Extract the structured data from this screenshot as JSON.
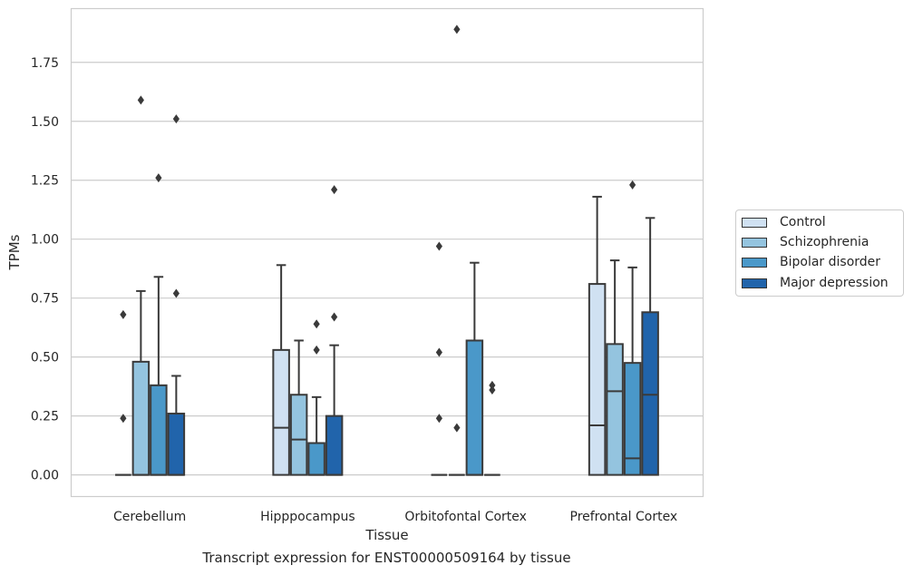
{
  "chart_data": {
    "type": "box",
    "title": "",
    "caption": "Transcript expression for ENST00000509164 by tissue",
    "xlabel": "Tissue",
    "ylabel": "TPMs",
    "ylim": [
      -0.09,
      1.98
    ],
    "yticks": [
      "0.00",
      "0.25",
      "0.50",
      "0.75",
      "1.00",
      "1.25",
      "1.50",
      "1.75"
    ],
    "ytick_values": [
      0,
      0.25,
      0.5,
      0.75,
      1.0,
      1.25,
      1.5,
      1.75
    ],
    "grid": true,
    "legend_position": "right",
    "categories": [
      "Cerebellum",
      "Hipppocampus",
      "Orbitofontal Cortex",
      "Prefrontal Cortex"
    ],
    "series": [
      {
        "name": "Control",
        "color": "#d0e1f2",
        "boxes": [
          {
            "q1": 0,
            "median": 0,
            "q3": 0,
            "whisker_low": 0,
            "whisker_high": 0,
            "outliers": [
              0.24,
              0.68
            ]
          },
          {
            "q1": 0,
            "median": 0.2,
            "q3": 0.53,
            "whisker_low": 0,
            "whisker_high": 0.89,
            "outliers": []
          },
          {
            "q1": 0,
            "median": 0,
            "q3": 0,
            "whisker_low": 0,
            "whisker_high": 0,
            "outliers": [
              0.24,
              0.52,
              0.97
            ]
          },
          {
            "q1": 0,
            "median": 0.21,
            "q3": 0.81,
            "whisker_low": 0,
            "whisker_high": 1.18,
            "outliers": []
          }
        ]
      },
      {
        "name": "Schizophrenia",
        "color": "#94c4df",
        "boxes": [
          {
            "q1": 0,
            "median": 0,
            "q3": 0.48,
            "whisker_low": 0,
            "whisker_high": 0.78,
            "outliers": [
              1.59
            ]
          },
          {
            "q1": 0,
            "median": 0.15,
            "q3": 0.34,
            "whisker_low": 0,
            "whisker_high": 0.57,
            "outliers": []
          },
          {
            "q1": 0,
            "median": 0,
            "q3": 0,
            "whisker_low": 0,
            "whisker_high": 0,
            "outliers": [
              0.2,
              1.89
            ]
          },
          {
            "q1": 0,
            "median": 0.355,
            "q3": 0.555,
            "whisker_low": 0,
            "whisker_high": 0.91,
            "outliers": []
          }
        ]
      },
      {
        "name": "Bipolar disorder",
        "color": "#4a98c9",
        "boxes": [
          {
            "q1": 0,
            "median": 0,
            "q3": 0.38,
            "whisker_low": 0,
            "whisker_high": 0.84,
            "outliers": [
              1.26
            ]
          },
          {
            "q1": 0,
            "median": 0,
            "q3": 0.135,
            "whisker_low": 0,
            "whisker_high": 0.33,
            "outliers": [
              0.53,
              0.64
            ]
          },
          {
            "q1": 0,
            "median": 0,
            "q3": 0.57,
            "whisker_low": 0,
            "whisker_high": 0.9,
            "outliers": []
          },
          {
            "q1": 0,
            "median": 0.07,
            "q3": 0.475,
            "whisker_low": 0,
            "whisker_high": 0.88,
            "outliers": [
              1.23
            ]
          }
        ]
      },
      {
        "name": "Major depression",
        "color": "#2164ab",
        "boxes": [
          {
            "q1": 0,
            "median": 0,
            "q3": 0.26,
            "whisker_low": 0,
            "whisker_high": 0.42,
            "outliers": [
              0.77,
              1.51
            ]
          },
          {
            "q1": 0,
            "median": 0,
            "q3": 0.25,
            "whisker_low": 0,
            "whisker_high": 0.55,
            "outliers": [
              0.67,
              1.21
            ]
          },
          {
            "q1": 0,
            "median": 0,
            "q3": 0,
            "whisker_low": 0,
            "whisker_high": 0,
            "outliers": [
              0.36,
              0.38
            ]
          },
          {
            "q1": 0,
            "median": 0.34,
            "q3": 0.69,
            "whisker_low": 0,
            "whisker_high": 1.09,
            "outliers": []
          }
        ]
      }
    ]
  }
}
